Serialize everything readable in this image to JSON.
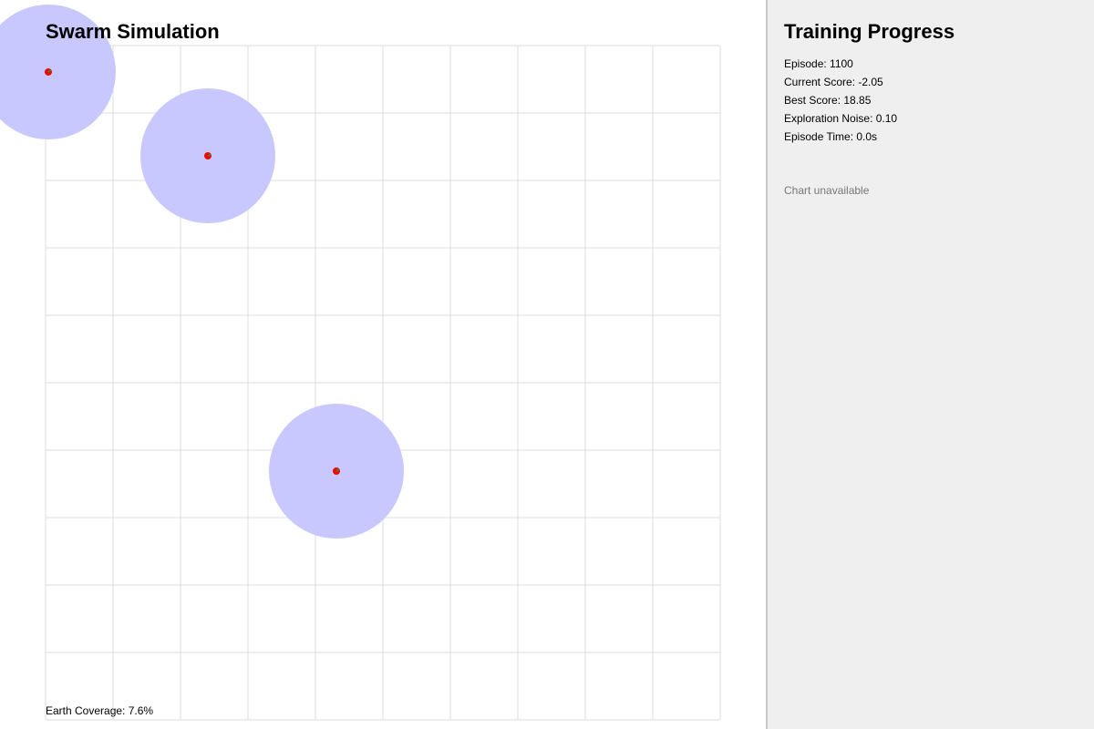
{
  "simulation": {
    "title": "Swarm Simulation",
    "grid": {
      "cols": 10,
      "rows": 10,
      "line_color": "#dcdcdc"
    },
    "colors": {
      "coverage": "#c8c8ff",
      "agent": "#ff0000",
      "agent_heading": "#2e8b2e"
    },
    "coverage": {
      "label": "Earth Coverage",
      "value": "7.6%"
    }
  },
  "panel": {
    "title": "Training Progress",
    "stats": [
      {
        "label": "Episode",
        "value": "1100"
      },
      {
        "label": "Current Score",
        "value": "-2.05"
      },
      {
        "label": "Best Score",
        "value": "18.85"
      },
      {
        "label": "Exploration Noise",
        "value": "0.10"
      },
      {
        "label": "Episode Time",
        "value": "0.0s"
      }
    ],
    "chart_message": "Chart unavailable"
  }
}
